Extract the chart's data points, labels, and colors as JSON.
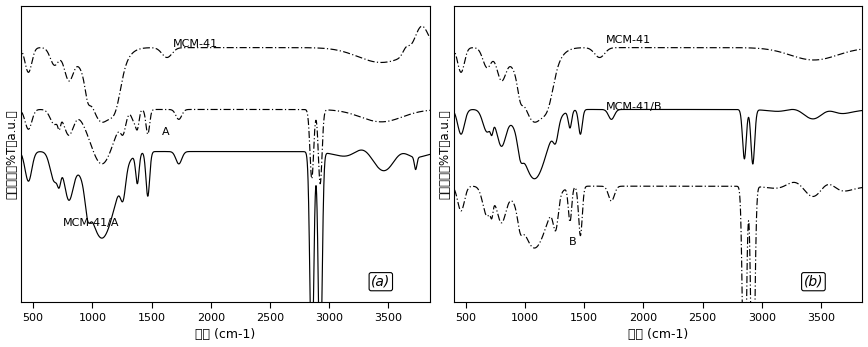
{
  "xlim": [
    400,
    3900
  ],
  "ylim": [
    -0.15,
    1.05
  ],
  "xticks": [
    500,
    1000,
    1500,
    2000,
    2500,
    3000,
    3500
  ],
  "xlabel": "波数 (cm-1)",
  "ylabel": "吸收强度（%T，a.u.）",
  "panel_a_label": "(a)",
  "panel_b_label": "(b)",
  "background_color": "#ffffff"
}
